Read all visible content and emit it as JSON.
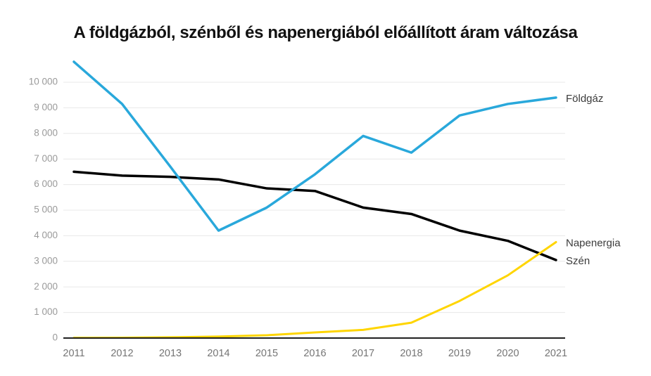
{
  "title": "A földgázból, szénből és napenergiából előállított áram változása",
  "chart_data": {
    "type": "line",
    "title": "A földgázból, szénből és napenergiából előállított áram változása",
    "x": [
      2011,
      2012,
      2013,
      2014,
      2015,
      2016,
      2017,
      2018,
      2019,
      2020,
      2021
    ],
    "x_labels": [
      "2011",
      "2012",
      "2013",
      "2014",
      "2015",
      "2016",
      "2017",
      "2018",
      "2019",
      "2020",
      "2021"
    ],
    "series": [
      {
        "name": "Szén",
        "label": "Szén",
        "color": "#000000",
        "width": 3.5,
        "values": [
          6500,
          6350,
          6300,
          6200,
          5850,
          5750,
          5100,
          4850,
          4200,
          3800,
          3050
        ]
      },
      {
        "name": "Napenergia",
        "label": "Napenergia",
        "color": "#ffd500",
        "width": 3,
        "values": [
          10,
          15,
          30,
          60,
          110,
          220,
          320,
          600,
          1450,
          2450,
          3750
        ]
      },
      {
        "name": "Földgáz",
        "label": "Földgáz",
        "color": "#29a8db",
        "width": 3.5,
        "values": [
          10800,
          9150,
          6700,
          4200,
          5100,
          6400,
          7900,
          7250,
          8700,
          9150,
          9400
        ]
      }
    ],
    "y_ticks": [
      {
        "value": 0,
        "label": "0"
      },
      {
        "value": 1000,
        "label": "1 000"
      },
      {
        "value": 2000,
        "label": "2 000"
      },
      {
        "value": 3000,
        "label": "3 000"
      },
      {
        "value": 4000,
        "label": "4 000"
      },
      {
        "value": 5000,
        "label": "5 000"
      },
      {
        "value": 6000,
        "label": "6 000"
      },
      {
        "value": 7000,
        "label": "7 000"
      },
      {
        "value": 8000,
        "label": "8 000"
      },
      {
        "value": 9000,
        "label": "9 000"
      },
      {
        "value": 10000,
        "label": "10 000"
      }
    ],
    "ylim": [
      0,
      10850
    ],
    "grid": true,
    "legend_position": "end-of-line-labels-right"
  },
  "colors": {
    "background": "#ffffff",
    "title_text": "#111111",
    "grid_line": "#e8e8e8",
    "axis_line": "#212121",
    "y_tick_text": "#9a9a9a",
    "x_tick_text": "#757575",
    "series_label_text": "#3b3b3b"
  }
}
